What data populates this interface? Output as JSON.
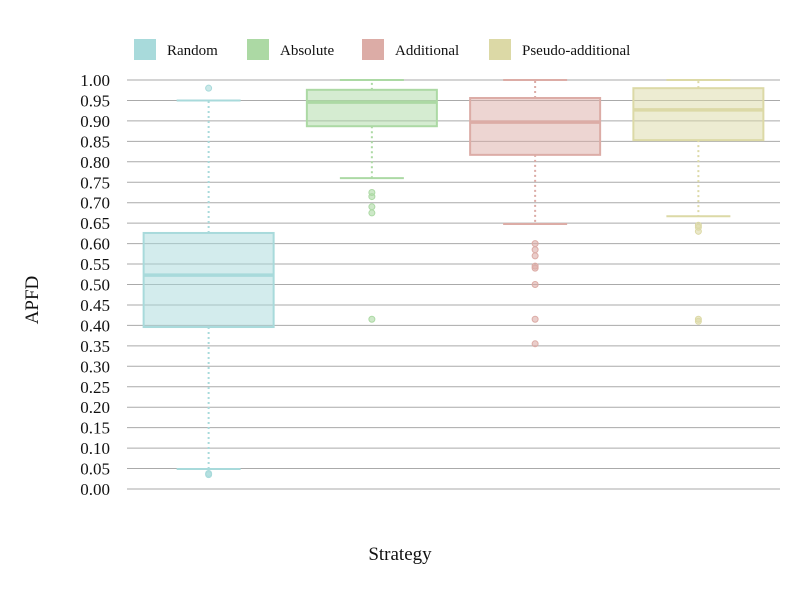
{
  "chart_data": {
    "type": "box",
    "title": "",
    "xlabel": "Strategy",
    "ylabel": "APFD",
    "ylim": [
      0,
      1
    ],
    "ytick_step": 0.05,
    "yticks": [
      "0.00",
      "0.05",
      "0.10",
      "0.15",
      "0.20",
      "0.25",
      "0.30",
      "0.35",
      "0.40",
      "0.45",
      "0.50",
      "0.55",
      "0.60",
      "0.65",
      "0.70",
      "0.75",
      "0.80",
      "0.85",
      "0.90",
      "0.95",
      "1.00"
    ],
    "grid": true,
    "legend_position": "top",
    "series": [
      {
        "name": "Random",
        "color": "#a8dadb",
        "whisker_low": 0.049,
        "q1": 0.396,
        "median": 0.523,
        "q3": 0.626,
        "whisker_high": 0.95,
        "outliers": [
          0.98,
          0.038,
          0.035
        ]
      },
      {
        "name": "Absolute",
        "color": "#acd9a4",
        "whisker_low": 0.76,
        "q1": 0.887,
        "median": 0.946,
        "q3": 0.976,
        "whisker_high": 1.0,
        "outliers": [
          0.725,
          0.715,
          0.69,
          0.675,
          0.415
        ]
      },
      {
        "name": "Additional",
        "color": "#dcaca6",
        "whisker_low": 0.648,
        "q1": 0.817,
        "median": 0.897,
        "q3": 0.956,
        "whisker_high": 1.0,
        "outliers": [
          0.6,
          0.585,
          0.57,
          0.545,
          0.54,
          0.5,
          0.415,
          0.355
        ]
      },
      {
        "name": "Pseudo-additional",
        "color": "#dcd9a6",
        "whisker_low": 0.667,
        "q1": 0.853,
        "median": 0.927,
        "q3": 0.98,
        "whisker_high": 1.0,
        "outliers": [
          0.645,
          0.64,
          0.63,
          0.415,
          0.41
        ]
      }
    ]
  }
}
